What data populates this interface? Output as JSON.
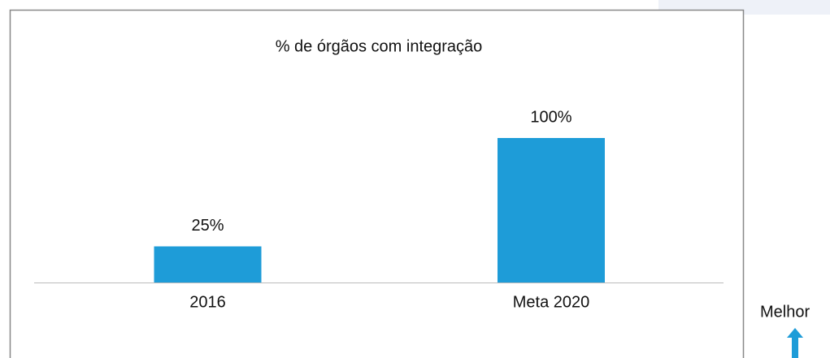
{
  "chart_data": {
    "type": "bar",
    "title": "% de órgãos com integração",
    "categories": [
      "2016",
      "Meta 2020"
    ],
    "values": [
      25,
      100
    ],
    "value_labels": [
      "25%",
      "100%"
    ],
    "color": "#1e9cd8",
    "ylim": [
      0,
      100
    ],
    "annotation": "Melhor"
  }
}
